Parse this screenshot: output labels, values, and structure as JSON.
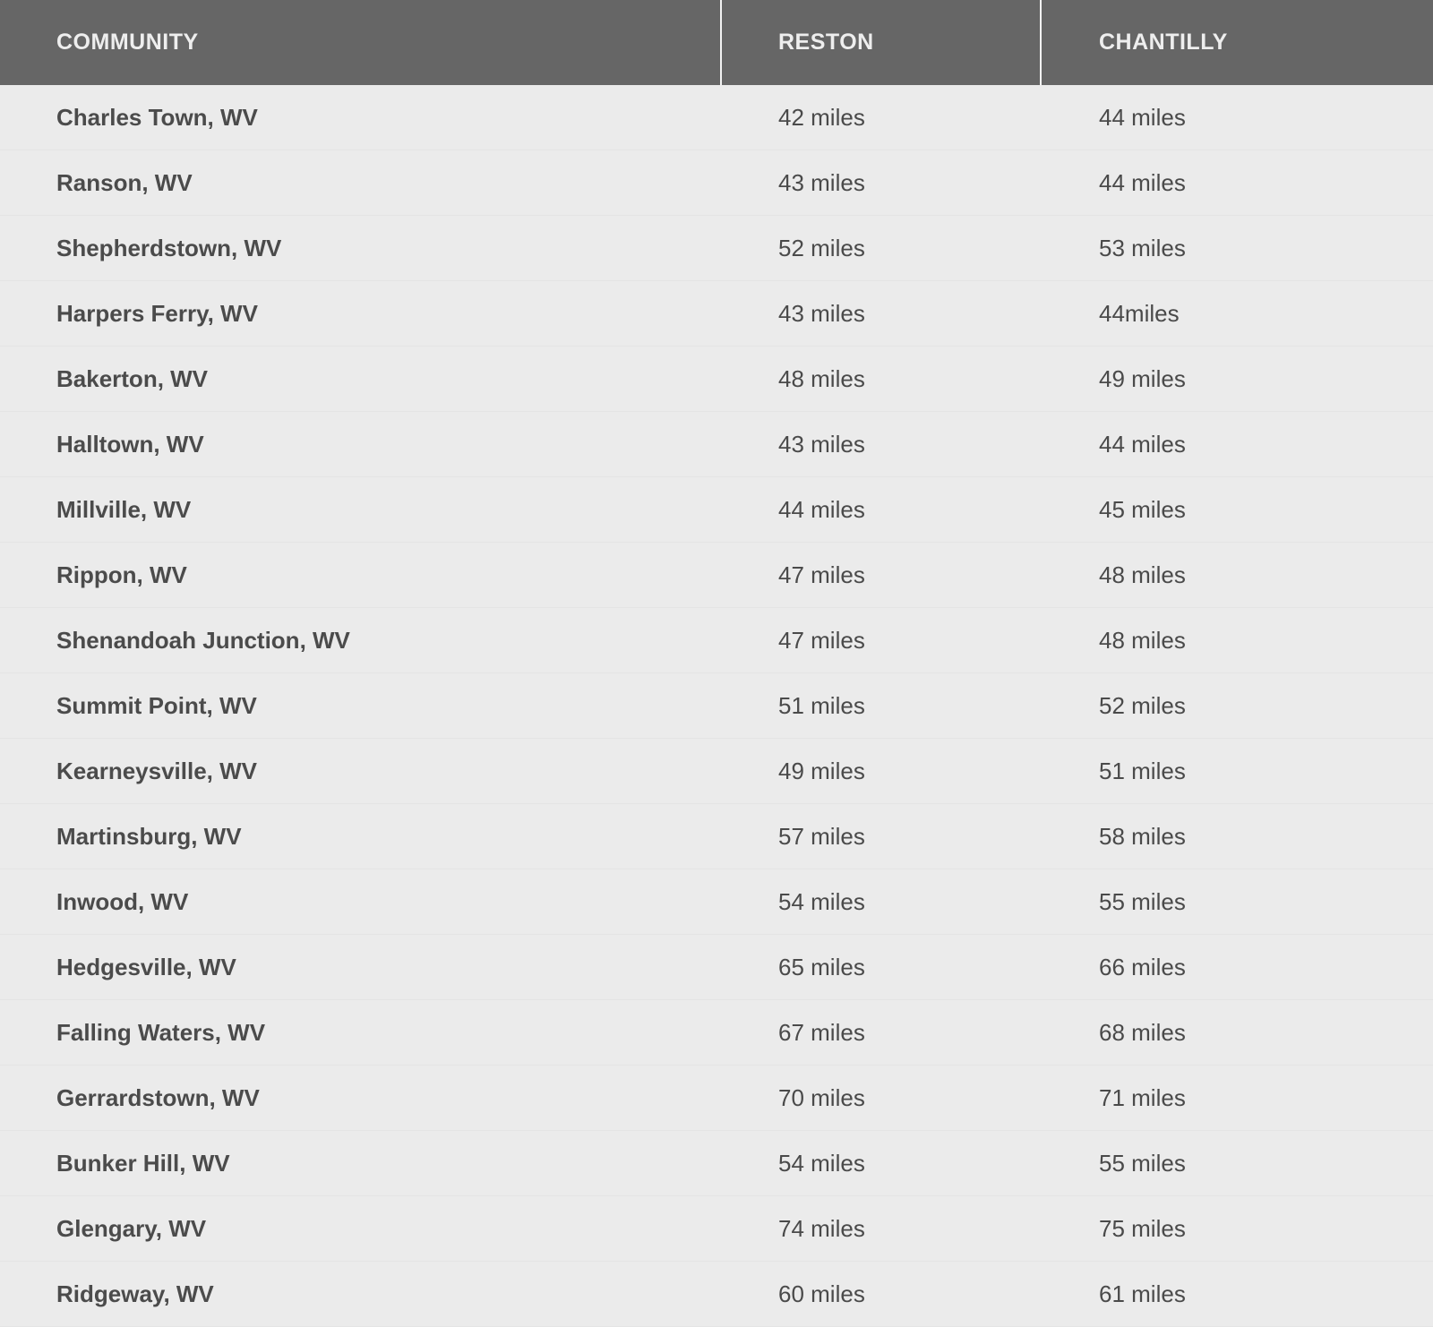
{
  "table": {
    "headers": [
      "COMMUNITY",
      "RESTON",
      "CHANTILLY"
    ],
    "rows": [
      [
        "Charles Town, WV",
        "42 miles",
        "44 miles"
      ],
      [
        "Ranson, WV",
        "43 miles",
        "44 miles"
      ],
      [
        "Shepherdstown, WV",
        "52 miles",
        "53 miles"
      ],
      [
        "Harpers Ferry, WV",
        "43 miles",
        "44miles"
      ],
      [
        "Bakerton, WV",
        "48 miles",
        "49 miles"
      ],
      [
        "Halltown, WV",
        "43 miles",
        "44 miles"
      ],
      [
        "Millville, WV",
        "44 miles",
        "45 miles"
      ],
      [
        "Rippon, WV",
        "47 miles",
        "48 miles"
      ],
      [
        "Shenandoah Junction, WV",
        "47 miles",
        "48 miles"
      ],
      [
        "Summit Point, WV",
        "51 miles",
        "52 miles"
      ],
      [
        "Kearneysville, WV",
        "49 miles",
        "51 miles"
      ],
      [
        "Martinsburg, WV",
        "57 miles",
        "58 miles"
      ],
      [
        "Inwood, WV",
        "54 miles",
        "55 miles"
      ],
      [
        "Hedgesville, WV",
        "65 miles",
        "66 miles"
      ],
      [
        "Falling Waters, WV",
        "67 miles",
        "68 miles"
      ],
      [
        "Gerrardstown, WV",
        "70 miles",
        "71 miles"
      ],
      [
        "Bunker Hill, WV",
        "54 miles",
        "55 miles"
      ],
      [
        "Glengary, WV",
        "74 miles",
        "75 miles"
      ],
      [
        "Ridgeway, WV",
        "60 miles",
        "61 miles"
      ]
    ]
  },
  "colors": {
    "header_bg": "#666666",
    "header_text": "#eeeeee",
    "body_bg": "#ebebeb",
    "body_text": "#4a4a4a"
  }
}
